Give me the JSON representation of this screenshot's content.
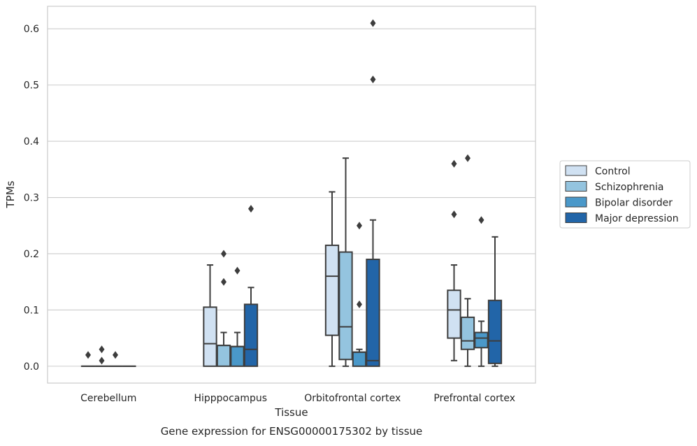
{
  "chart_data": {
    "type": "box",
    "caption": "Gene expression for ENSG00000175302 by tissue",
    "xlabel": "Tissue",
    "ylabel": "TPMs",
    "ylim": [
      -0.03,
      0.64
    ],
    "yticks": [
      "0.0",
      "0.1",
      "0.2",
      "0.3",
      "0.4",
      "0.5",
      "0.6"
    ],
    "ytick_values": [
      0,
      0.1,
      0.2,
      0.3,
      0.4,
      0.5,
      0.6
    ],
    "grid": "horizontal",
    "legend_position": "right",
    "categories": [
      "Cerebellum",
      "Hipppocampus",
      "Orbitofrontal cortex",
      "Prefrontal cortex"
    ],
    "series": [
      {
        "name": "Control",
        "color": "#d0e1f2",
        "boxes": [
          {
            "min": 0,
            "q1": 0,
            "median": 0,
            "q3": 0,
            "max": 0,
            "outliers": [
              0.02
            ]
          },
          {
            "min": 0,
            "q1": 0,
            "median": 0.04,
            "q3": 0.105,
            "max": 0.18,
            "outliers": []
          },
          {
            "min": 0,
            "q1": 0.055,
            "median": 0.16,
            "q3": 0.215,
            "max": 0.31,
            "outliers": []
          },
          {
            "min": 0.01,
            "q1": 0.05,
            "median": 0.1,
            "q3": 0.135,
            "max": 0.18,
            "outliers": [
              0.27,
              0.36
            ]
          }
        ]
      },
      {
        "name": "Schizophrenia",
        "color": "#94c4df",
        "boxes": [
          {
            "min": 0,
            "q1": 0,
            "median": 0,
            "q3": 0,
            "max": 0,
            "outliers": [
              0.01,
              0.03
            ]
          },
          {
            "min": 0,
            "q1": 0,
            "median": 0.037,
            "q3": 0.037,
            "max": 0.06,
            "outliers": [
              0.15,
              0.2
            ]
          },
          {
            "min": 0,
            "q1": 0.012,
            "median": 0.07,
            "q3": 0.203,
            "max": 0.37,
            "outliers": []
          },
          {
            "min": 0,
            "q1": 0.03,
            "median": 0.045,
            "q3": 0.087,
            "max": 0.12,
            "outliers": [
              0.37
            ]
          }
        ]
      },
      {
        "name": "Bipolar disorder",
        "color": "#4a98c9",
        "boxes": [
          {
            "min": 0,
            "q1": 0,
            "median": 0,
            "q3": 0,
            "max": 0,
            "outliers": [
              0.02
            ]
          },
          {
            "min": 0,
            "q1": 0,
            "median": 0.035,
            "q3": 0.035,
            "max": 0.06,
            "outliers": [
              0.17
            ]
          },
          {
            "min": 0,
            "q1": 0,
            "median": 0.025,
            "q3": 0.025,
            "max": 0.03,
            "outliers": [
              0.11,
              0.25
            ]
          },
          {
            "min": 0,
            "q1": 0.033,
            "median": 0.05,
            "q3": 0.06,
            "max": 0.08,
            "outliers": [
              0.26
            ]
          }
        ]
      },
      {
        "name": "Major depression",
        "color": "#2265a8",
        "boxes": [
          {
            "min": 0,
            "q1": 0,
            "median": 0,
            "q3": 0,
            "max": 0,
            "outliers": []
          },
          {
            "min": 0,
            "q1": 0,
            "median": 0.03,
            "q3": 0.11,
            "max": 0.14,
            "outliers": [
              0.28
            ]
          },
          {
            "min": 0,
            "q1": 0,
            "median": 0.01,
            "q3": 0.19,
            "max": 0.26,
            "outliers": [
              0.51,
              0.61
            ]
          },
          {
            "min": 0,
            "q1": 0.005,
            "median": 0.045,
            "q3": 0.117,
            "max": 0.23,
            "outliers": []
          }
        ]
      }
    ]
  }
}
